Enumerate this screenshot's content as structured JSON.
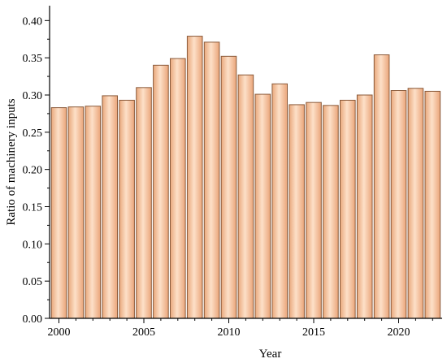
{
  "chart_data": {
    "type": "bar",
    "title": "",
    "xlabel": "Year",
    "ylabel": "Ratio of machinery inputs",
    "categories": [
      2000,
      2001,
      2002,
      2003,
      2004,
      2005,
      2006,
      2007,
      2008,
      2009,
      2010,
      2011,
      2012,
      2013,
      2014,
      2015,
      2016,
      2017,
      2018,
      2019,
      2020,
      2021,
      2022
    ],
    "values": [
      0.283,
      0.284,
      0.285,
      0.299,
      0.293,
      0.31,
      0.34,
      0.349,
      0.379,
      0.371,
      0.352,
      0.327,
      0.301,
      0.315,
      0.287,
      0.29,
      0.286,
      0.293,
      0.3,
      0.354,
      0.306,
      0.309,
      0.305
    ],
    "ylim": [
      0,
      0.42
    ],
    "yticks": [
      "0.00",
      "0.05",
      "0.10",
      "0.15",
      "0.20",
      "0.25",
      "0.30",
      "0.35",
      "0.40"
    ],
    "xticks": [
      "2000",
      "2005",
      "2010",
      "2015",
      "2020"
    ],
    "grid": false,
    "legend": "none",
    "bar_color": "#f8c29c",
    "bar_edge_color": "#8a5a3a"
  }
}
